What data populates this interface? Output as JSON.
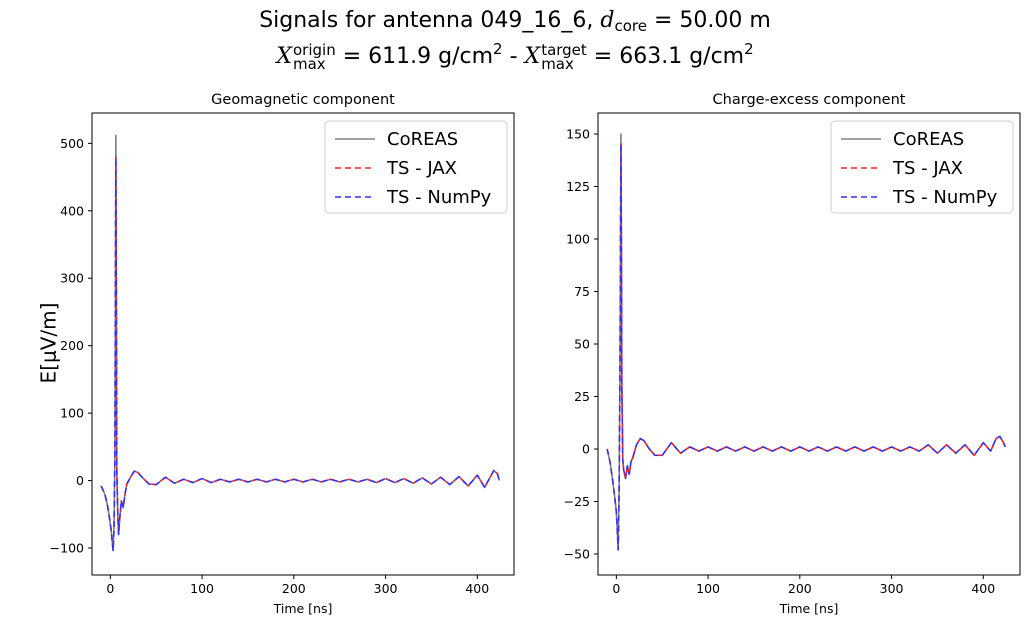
{
  "figure": {
    "suptitle": {
      "line1_prefix": "Signals for antenna 049_16_6, ",
      "line1_var": "d",
      "line1_sub": "core",
      "line1_suffix": " = 50.00 m",
      "line2_var1": "X",
      "line2_sub1": "max",
      "line2_sup1": "origin",
      "line2_mid1": " =  611.9 g/cm",
      "line2_sq": "2",
      "line2_sep": " -  ",
      "line2_var2": "X",
      "line2_sub2": "max",
      "line2_sup2": "target",
      "line2_mid2": " =  663.1 g/cm"
    },
    "ylabel": "E[μV/m]",
    "legend_placement": "top-right",
    "colors": {
      "CoREAS": "#808080",
      "TS - JAX": "#ff2020",
      "TS - NumPy": "#3030ff"
    }
  },
  "chart_data": [
    {
      "type": "line",
      "title": "Geomagnetic component",
      "xlabel": "Time [ns]",
      "ylabel": "E[μV/m]",
      "xlim": [
        -20,
        440
      ],
      "ylim": [
        -140,
        545
      ],
      "xticks": [
        0,
        100,
        200,
        300,
        400
      ],
      "yticks": [
        -100,
        0,
        100,
        200,
        300,
        400,
        500
      ],
      "ytick_labels": [
        "−100",
        "0",
        "100",
        "200",
        "300",
        "400",
        "500"
      ],
      "grid": false,
      "legend": [
        "CoREAS",
        "TS - JAX",
        "TS - NumPy"
      ],
      "series": [
        {
          "name": "CoREAS",
          "x": [
            -10,
            -6,
            -3,
            -1,
            1,
            3,
            4,
            5,
            6,
            6.5,
            7,
            8,
            9,
            10,
            12,
            14,
            16,
            18,
            22,
            26,
            30,
            36,
            42,
            50,
            60,
            70,
            80,
            90,
            100,
            110,
            120,
            130,
            140,
            150,
            160,
            170,
            180,
            190,
            200,
            210,
            220,
            230,
            240,
            250,
            260,
            270,
            280,
            290,
            300,
            310,
            320,
            330,
            340,
            350,
            360,
            370,
            380,
            390,
            400,
            408,
            414,
            418,
            422,
            424
          ],
          "y": [
            -8,
            -20,
            -38,
            -55,
            -75,
            -104,
            -70,
            40,
            512,
            300,
            20,
            -45,
            -80,
            -60,
            -30,
            -40,
            -20,
            -5,
            5,
            14,
            12,
            3,
            -5,
            -6,
            5,
            -4,
            2,
            -3,
            3,
            -3,
            2,
            -2,
            2,
            -2,
            2,
            -2,
            2,
            -2,
            2,
            -2,
            2,
            -2,
            2,
            -2,
            2,
            -2,
            2,
            -3,
            3,
            -3,
            3,
            -4,
            4,
            -5,
            5,
            -6,
            6,
            -8,
            8,
            -10,
            5,
            15,
            10,
            0
          ]
        },
        {
          "name": "TS - JAX",
          "x": [
            -10,
            -6,
            -3,
            -1,
            1,
            3,
            4,
            5,
            6,
            6.5,
            7,
            8,
            9,
            10,
            12,
            14,
            16,
            18,
            22,
            26,
            30,
            36,
            42,
            50,
            60,
            70,
            80,
            90,
            100,
            110,
            120,
            130,
            140,
            150,
            160,
            170,
            180,
            190,
            200,
            210,
            220,
            230,
            240,
            250,
            260,
            270,
            280,
            290,
            300,
            310,
            320,
            330,
            340,
            350,
            360,
            370,
            380,
            390,
            400,
            408,
            414,
            418,
            422,
            424
          ],
          "y": [
            -8,
            -20,
            -38,
            -55,
            -75,
            -104,
            -70,
            40,
            480,
            300,
            20,
            -45,
            -80,
            -60,
            -30,
            -40,
            -20,
            -5,
            5,
            14,
            12,
            3,
            -5,
            -6,
            5,
            -4,
            2,
            -3,
            3,
            -3,
            2,
            -2,
            2,
            -2,
            2,
            -2,
            2,
            -2,
            2,
            -2,
            2,
            -2,
            2,
            -2,
            2,
            -2,
            2,
            -3,
            3,
            -3,
            3,
            -4,
            4,
            -5,
            5,
            -6,
            6,
            -8,
            8,
            -10,
            5,
            15,
            10,
            0
          ]
        },
        {
          "name": "TS - NumPy",
          "x": [
            -10,
            -6,
            -3,
            -1,
            1,
            3,
            4,
            5,
            6,
            6.5,
            7,
            8,
            9,
            10,
            12,
            14,
            16,
            18,
            22,
            26,
            30,
            36,
            42,
            50,
            60,
            70,
            80,
            90,
            100,
            110,
            120,
            130,
            140,
            150,
            160,
            170,
            180,
            190,
            200,
            210,
            220,
            230,
            240,
            250,
            260,
            270,
            280,
            290,
            300,
            310,
            320,
            330,
            340,
            350,
            360,
            370,
            380,
            390,
            400,
            408,
            414,
            418,
            422,
            424
          ],
          "y": [
            -8,
            -20,
            -38,
            -55,
            -75,
            -104,
            -70,
            40,
            478,
            300,
            20,
            -45,
            -80,
            -60,
            -30,
            -40,
            -20,
            -5,
            5,
            14,
            12,
            3,
            -5,
            -6,
            5,
            -4,
            2,
            -3,
            3,
            -3,
            2,
            -2,
            2,
            -2,
            2,
            -2,
            2,
            -2,
            2,
            -2,
            2,
            -2,
            2,
            -2,
            2,
            -2,
            2,
            -3,
            3,
            -3,
            3,
            -4,
            4,
            -5,
            5,
            -6,
            6,
            -8,
            8,
            -10,
            5,
            15,
            10,
            0
          ]
        }
      ]
    },
    {
      "type": "line",
      "title": "Charge-excess component",
      "xlabel": "Time [ns]",
      "xlim": [
        -20,
        440
      ],
      "ylim": [
        -60,
        160
      ],
      "xticks": [
        0,
        100,
        200,
        300,
        400
      ],
      "yticks": [
        -50,
        -25,
        0,
        25,
        50,
        75,
        100,
        125,
        150
      ],
      "ytick_labels": [
        "−50",
        "−25",
        "0",
        "25",
        "50",
        "75",
        "100",
        "125",
        "150"
      ],
      "grid": false,
      "legend": [
        "CoREAS",
        "TS - JAX",
        "TS - NumPy"
      ],
      "series": [
        {
          "name": "CoREAS",
          "x": [
            -10,
            -7,
            -4,
            -2,
            0,
            2,
            3,
            4,
            5,
            5.5,
            6,
            7,
            8,
            10,
            12,
            14,
            16,
            18,
            22,
            26,
            30,
            36,
            42,
            50,
            60,
            70,
            80,
            90,
            100,
            110,
            120,
            130,
            140,
            150,
            160,
            170,
            180,
            190,
            200,
            210,
            220,
            230,
            240,
            250,
            260,
            270,
            280,
            290,
            300,
            310,
            320,
            330,
            340,
            350,
            360,
            370,
            380,
            390,
            400,
            408,
            414,
            418,
            422,
            424
          ],
          "y": [
            0,
            -6,
            -15,
            -22,
            -30,
            -48,
            -20,
            40,
            150,
            100,
            30,
            -5,
            -10,
            -14,
            -8,
            -12,
            -6,
            -4,
            2,
            5,
            4,
            0,
            -3,
            -3,
            3,
            -2,
            1,
            -1,
            1,
            -1,
            1,
            -1,
            1,
            -1,
            1,
            -1,
            1,
            -1,
            1,
            -1,
            1,
            -1,
            1,
            -1,
            1,
            -1,
            1,
            -1,
            1,
            -1,
            1,
            -1,
            2,
            -2,
            2,
            -2,
            2,
            -3,
            3,
            -1,
            5,
            6,
            3,
            1
          ]
        },
        {
          "name": "TS - JAX",
          "x": [
            -10,
            -7,
            -4,
            -2,
            0,
            2,
            3,
            4,
            5,
            5.5,
            6,
            7,
            8,
            10,
            12,
            14,
            16,
            18,
            22,
            26,
            30,
            36,
            42,
            50,
            60,
            70,
            80,
            90,
            100,
            110,
            120,
            130,
            140,
            150,
            160,
            170,
            180,
            190,
            200,
            210,
            220,
            230,
            240,
            250,
            260,
            270,
            280,
            290,
            300,
            310,
            320,
            330,
            340,
            350,
            360,
            370,
            380,
            390,
            400,
            408,
            414,
            418,
            422,
            424
          ],
          "y": [
            0,
            -6,
            -15,
            -22,
            -30,
            -48,
            -20,
            40,
            146,
            100,
            30,
            -5,
            -10,
            -14,
            -8,
            -12,
            -6,
            -4,
            2,
            5,
            4,
            0,
            -3,
            -3,
            3,
            -2,
            1,
            -1,
            1,
            -1,
            1,
            -1,
            1,
            -1,
            1,
            -1,
            1,
            -1,
            1,
            -1,
            1,
            -1,
            1,
            -1,
            1,
            -1,
            1,
            -1,
            1,
            -1,
            1,
            -1,
            2,
            -2,
            2,
            -2,
            2,
            -3,
            3,
            -1,
            5,
            6,
            3,
            1
          ]
        },
        {
          "name": "TS - NumPy",
          "x": [
            -10,
            -7,
            -4,
            -2,
            0,
            2,
            3,
            4,
            5,
            5.5,
            6,
            7,
            8,
            10,
            12,
            14,
            16,
            18,
            22,
            26,
            30,
            36,
            42,
            50,
            60,
            70,
            80,
            90,
            100,
            110,
            120,
            130,
            140,
            150,
            160,
            170,
            180,
            190,
            200,
            210,
            220,
            230,
            240,
            250,
            260,
            270,
            280,
            290,
            300,
            310,
            320,
            330,
            340,
            350,
            360,
            370,
            380,
            390,
            400,
            408,
            414,
            418,
            422,
            424
          ],
          "y": [
            0,
            -6,
            -15,
            -22,
            -30,
            -48,
            -20,
            40,
            145,
            100,
            30,
            -5,
            -10,
            -14,
            -8,
            -12,
            -6,
            -4,
            2,
            5,
            4,
            0,
            -3,
            -3,
            3,
            -2,
            1,
            -1,
            1,
            -1,
            1,
            -1,
            1,
            -1,
            1,
            -1,
            1,
            -1,
            1,
            -1,
            1,
            -1,
            1,
            -1,
            1,
            -1,
            1,
            -1,
            1,
            -1,
            1,
            -1,
            2,
            -2,
            2,
            -2,
            2,
            -3,
            3,
            -1,
            5,
            6,
            3,
            1
          ]
        }
      ]
    }
  ]
}
